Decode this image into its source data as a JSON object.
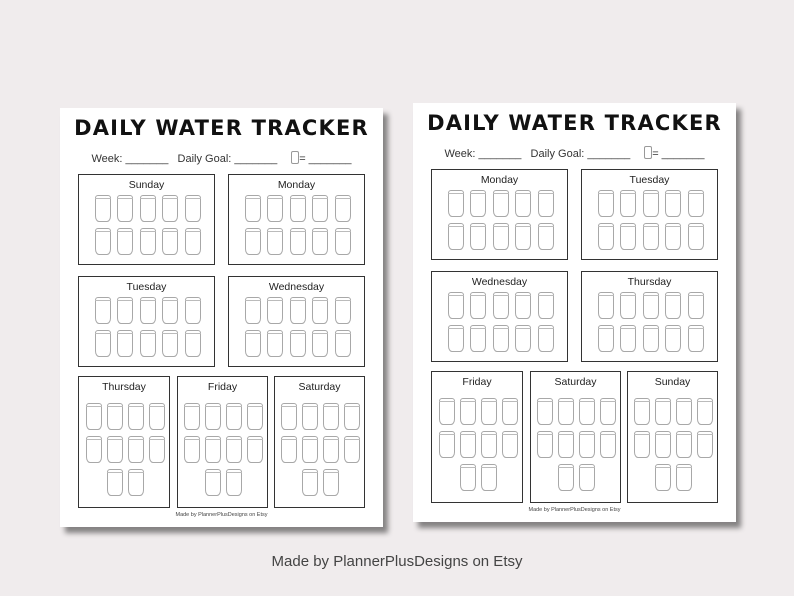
{
  "pages": [
    {
      "title": "DAILY WATER TRACKER",
      "week_label": "Week: _______",
      "goal_label": "Daily Goal: _______",
      "cup_equals": "= _______",
      "days": [
        "Sunday",
        "Monday",
        "Tuesday",
        "Wednesday",
        "Thursday",
        "Friday",
        "Saturday"
      ],
      "footer": "Made by PlannerPlusDesigns on Etsy"
    },
    {
      "title": "DAILY WATER TRACKER",
      "week_label": "Week: _______",
      "goal_label": "Daily Goal: _______",
      "cup_equals": "= _______",
      "days": [
        "Monday",
        "Tuesday",
        "Wednesday",
        "Thursday",
        "Friday",
        "Saturday",
        "Sunday"
      ],
      "footer": "Made by PlannerPlusDesigns on Etsy"
    }
  ],
  "cups_per_day": 10,
  "caption": "Made by PlannerPlusDesigns on Etsy",
  "colors": {
    "background": "#f0eced",
    "page": "#ffffff",
    "border": "#333333"
  }
}
